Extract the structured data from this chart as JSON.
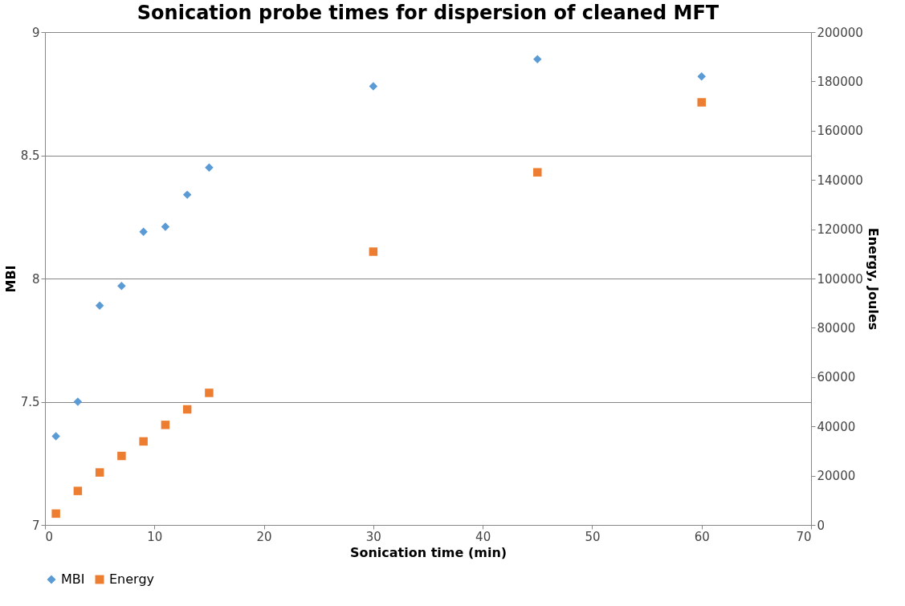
{
  "chart_data": {
    "type": "scatter",
    "title": "Sonication probe times for dispersion of cleaned MFT",
    "xlabel": "Sonication time (min)",
    "ylabel": "MBI",
    "y2label": "Energy, Joules",
    "x": [
      1,
      3,
      5,
      7,
      9,
      11,
      13,
      15,
      30,
      45,
      60
    ],
    "series": [
      {
        "name": "MBI",
        "color": "#5b9bd5",
        "marker": "diamond",
        "values": [
          7.36,
          7.5,
          7.89,
          7.97,
          8.19,
          8.21,
          8.34,
          8.45,
          8.78,
          8.89,
          8.82
        ]
      },
      {
        "name": "Energy",
        "color": "#ed7d31",
        "marker": "square",
        "axis": "y2",
        "values": [
          4600,
          13800,
          21300,
          28000,
          33900,
          40600,
          46900,
          53600,
          110900,
          143100,
          171500
        ]
      }
    ],
    "xlim": [
      0,
      70
    ],
    "xticks": [
      0,
      10,
      20,
      30,
      40,
      50,
      60,
      70
    ],
    "ylim": [
      7,
      9
    ],
    "yticks": [
      7,
      7.5,
      8,
      8.5,
      9
    ],
    "y2lim": [
      0,
      200000
    ],
    "y2ticks": [
      0,
      20000,
      40000,
      60000,
      80000,
      100000,
      120000,
      140000,
      160000,
      180000,
      200000
    ],
    "grid": "y",
    "legend": "bottom"
  }
}
